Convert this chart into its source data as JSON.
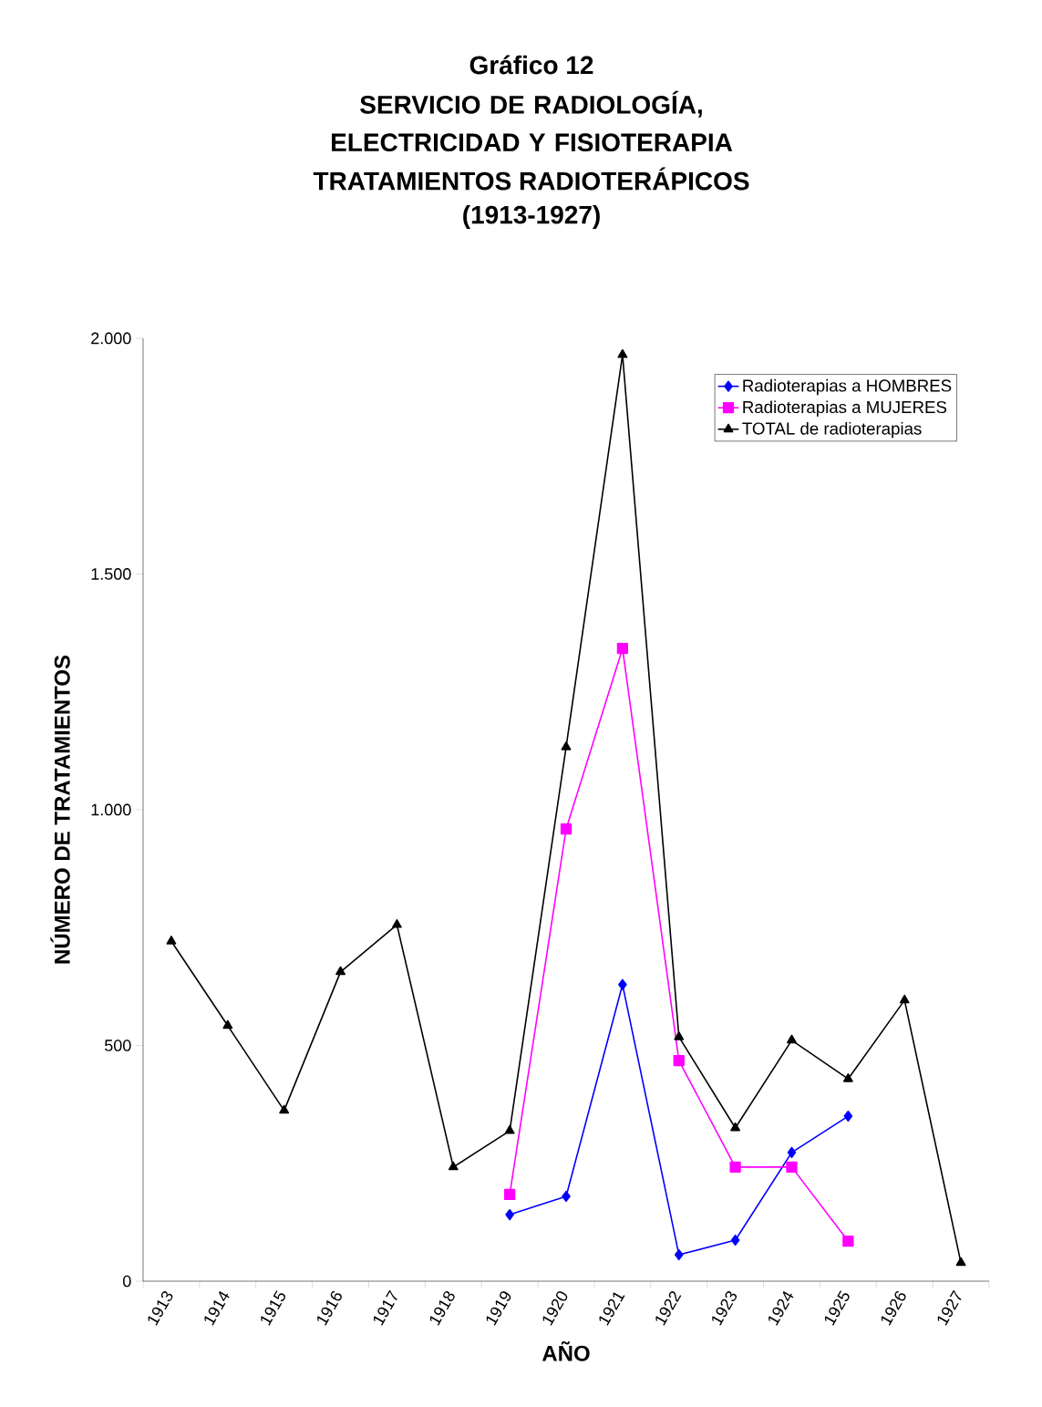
{
  "chart_data": {
    "type": "line",
    "title": "Gráfico 12",
    "subtitle": "SERVICIO DE RADIOLOGÍA, ELECTRICIDAD Y FISIOTERAPIA",
    "annotations": [
      "TRATAMIENTOS RADIOTERÁPICOS",
      "(1913-1927)"
    ],
    "xlabel": "AÑO",
    "ylabel": "NÚMERO DE TRATAMIENTOS",
    "categories": [
      "1913",
      "1914",
      "1915",
      "1916",
      "1917",
      "1918",
      "1919",
      "1920",
      "1921",
      "1922",
      "1923",
      "1924",
      "1925",
      "1926",
      "1927"
    ],
    "series": [
      {
        "name": "Radioterapias a HOMBRES",
        "color": "#0000ff",
        "marker": "diamond",
        "values": [
          null,
          null,
          null,
          null,
          null,
          null,
          141,
          180,
          629,
          56,
          87,
          273,
          350,
          null,
          null
        ]
      },
      {
        "name": "Radioterapias a MUJERES",
        "color": "#ff00ff",
        "marker": "square",
        "values": [
          null,
          null,
          null,
          null,
          null,
          null,
          184,
          959,
          1342,
          468,
          242,
          242,
          85,
          null,
          null
        ]
      },
      {
        "name": "TOTAL de radioterapias",
        "color": "#000000",
        "marker": "triangle",
        "values": [
          721,
          542,
          362,
          656,
          756,
          242,
          319,
          1133,
          1965,
          518,
          325,
          511,
          429,
          596,
          39
        ]
      }
    ],
    "ylim": [
      0,
      2000
    ],
    "yticks": [
      0,
      500,
      {
        "value": 1000,
        "label": "1.000"
      },
      {
        "value": 1500,
        "label": "1.500"
      },
      {
        "value": 2000,
        "label": "2.000"
      }
    ],
    "grid": false,
    "legend": "top right",
    "line_style": "solid"
  }
}
